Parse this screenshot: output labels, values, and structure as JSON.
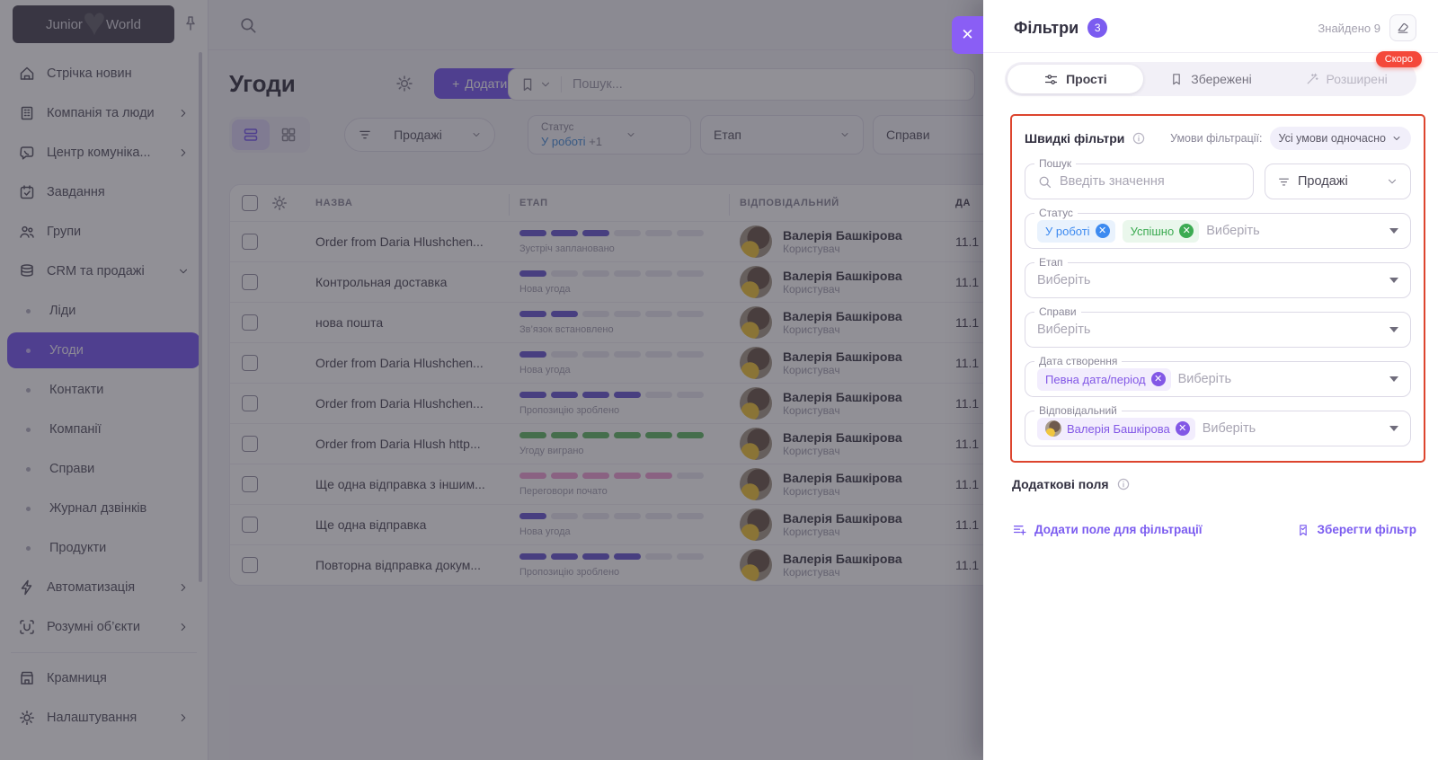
{
  "sidebar": {
    "logo": {
      "left": "Junior",
      "right": "World"
    },
    "items": [
      {
        "icon": "home-icon",
        "label": "Стрічка новин"
      },
      {
        "icon": "building-icon",
        "label": "Компанія та люди",
        "chevron": "right"
      },
      {
        "icon": "comm-icon",
        "label": "Центр комуніка...",
        "chevron": "right"
      },
      {
        "icon": "calendar-icon",
        "label": "Завдання"
      },
      {
        "icon": "users-icon",
        "label": "Групи"
      },
      {
        "icon": "layers-icon",
        "label": "CRM та продажі",
        "chevron": "down",
        "children": [
          {
            "label": "Ліди"
          },
          {
            "label": "Угоди",
            "active": true
          },
          {
            "label": "Контакти"
          },
          {
            "label": "Компанії"
          },
          {
            "label": "Справи"
          },
          {
            "label": "Журнал дзвінків"
          },
          {
            "label": "Продукти"
          }
        ]
      },
      {
        "icon": "lightning-icon",
        "label": "Автоматизація",
        "chevron": "right"
      },
      {
        "icon": "smart-icon",
        "label": "Розумні об’єкти",
        "chevron": "right"
      },
      {
        "divider": true
      },
      {
        "icon": "store-icon",
        "label": "Крамниця"
      },
      {
        "icon": "gear-icon",
        "label": "Налаштування",
        "chevron": "right"
      }
    ]
  },
  "page": {
    "title": "Угоди",
    "add_button": "Додати",
    "search_placeholder": "Пошук...",
    "funnel_dropdown": "Продажі",
    "quick_filters": {
      "status": {
        "label": "Статус",
        "value": "У роботі",
        "extra": "+1"
      },
      "stage": {
        "label": "Етап"
      },
      "tasks": {
        "label": "Справи"
      }
    }
  },
  "table": {
    "headers": {
      "name": "НАЗВА",
      "stage": "ЕТАП",
      "responsible": "ВІДПОВІДАЛЬНИЙ",
      "date": "ДА"
    },
    "rows": [
      {
        "name": "Order from Daria Hlushchen...",
        "stage": "Зустріч заплановано",
        "filled": 3,
        "color": "purple",
        "person": "Валерія Башкірова",
        "role": "Користувач",
        "date": "11.1"
      },
      {
        "name": "Контрольная доставка",
        "stage": "Нова угода",
        "filled": 1,
        "color": "purple",
        "person": "Валерія Башкірова",
        "role": "Користувач",
        "date": "11.1"
      },
      {
        "name": "нова пошта",
        "stage": "Зв’язок встановлено",
        "filled": 2,
        "color": "purple",
        "person": "Валерія Башкірова",
        "role": "Користувач",
        "date": "11.1"
      },
      {
        "name": "Order from Daria Hlushchen...",
        "stage": "Нова угода",
        "filled": 1,
        "color": "purple",
        "person": "Валерія Башкірова",
        "role": "Користувач",
        "date": "11.1"
      },
      {
        "name": "Order from Daria Hlushchen...",
        "stage": "Пропозицію зроблено",
        "filled": 4,
        "color": "purple",
        "person": "Валерія Башкірова",
        "role": "Користувач",
        "date": "11.1"
      },
      {
        "name": "Order from Daria Hlush http...",
        "stage": "Угоду виграно",
        "filled": 6,
        "color": "green",
        "person": "Валерія Башкірова",
        "role": "Користувач",
        "date": "11.1"
      },
      {
        "name": "Ще одна відправка з іншим...",
        "stage": "Переговори почато",
        "filled": 5,
        "color": "pink",
        "person": "Валерія Башкірова",
        "role": "Користувач",
        "date": "11.1"
      },
      {
        "name": "Ще одна відправка",
        "stage": "Нова угода",
        "filled": 1,
        "color": "purple",
        "person": "Валерія Башкірова",
        "role": "Користувач",
        "date": "11.1"
      },
      {
        "name": "Повторна відправка докум...",
        "stage": "Пропозицію зроблено",
        "filled": 4,
        "color": "purple",
        "person": "Валерія Башкірова",
        "role": "Користувач",
        "date": "11.1"
      }
    ]
  },
  "panel": {
    "title": "Фільтри",
    "badge": "3",
    "found": "Знайдено 9",
    "tabs": [
      {
        "icon": "sliders-icon",
        "label": "Прості",
        "state": "active"
      },
      {
        "icon": "bookmark-icon",
        "label": "Збережені",
        "state": "normal"
      },
      {
        "icon": "wand-icon",
        "label": "Розширені",
        "state": "disabled"
      }
    ],
    "soon_badge": "Скоро",
    "quick": {
      "title": "Швидкі фільтри",
      "conditions_label": "Умови фільтрації:",
      "conditions_value": "Усі умови одночасно",
      "search": {
        "label": "Пошук",
        "placeholder": "Введіть значення"
      },
      "funnel": {
        "value": "Продажі"
      },
      "status": {
        "label": "Статус",
        "placeholder": "Виберіть",
        "chips": [
          {
            "text": "У роботі",
            "color": "blue"
          },
          {
            "text": "Успішно",
            "color": "green"
          }
        ]
      },
      "stage": {
        "label": "Етап",
        "placeholder": "Виберіть"
      },
      "tasks": {
        "label": "Справи",
        "placeholder": "Виберіть"
      },
      "created": {
        "label": "Дата створення",
        "placeholder": "Виберіть",
        "chips": [
          {
            "text": "Певна дата/період",
            "color": "purple"
          }
        ]
      },
      "responsible": {
        "label": "Відповідальний",
        "placeholder": "Виберіть",
        "chips": [
          {
            "text": "Валерія Башкірова",
            "color": "purple",
            "avatar": true
          }
        ]
      }
    },
    "additional_fields": "Додаткові поля",
    "actions": {
      "add_field": "Додати поле для фільтрації",
      "save_filter": "Зберегти фільтр"
    }
  },
  "colors": {
    "accent": "#7b5cf0",
    "annotation_red": "#dd452e",
    "soon_red": "#f4483a",
    "chip_blue": "#3d8af0",
    "chip_green": "#3cab52",
    "chip_purple": "#8257e6",
    "stage_purple": "#6c5dd3",
    "stage_green": "#66bb6a",
    "stage_pink": "#f0a3d6"
  }
}
